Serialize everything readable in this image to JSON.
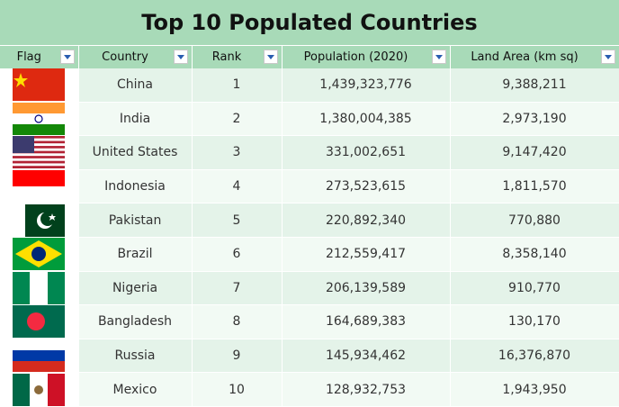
{
  "title": "Top 10 Populated Countries",
  "table": {
    "header": [
      "Flag",
      "Country",
      "Rank",
      "Population (2020)",
      "Land Area (km sq)"
    ],
    "rows": [
      [
        "China",
        "1",
        "1,439,323,776",
        "9,388,211"
      ],
      [
        "India",
        "2",
        "1,380,004,385",
        "2,973,190"
      ],
      [
        "United States",
        "3",
        "331,002,651",
        "9,147,420"
      ],
      [
        "Indonesia",
        "4",
        "273,523,615",
        "1,811,570"
      ],
      [
        "Pakistan",
        "5",
        "220,892,340",
        "770,880"
      ],
      [
        "Brazil",
        "6",
        "212,559,417",
        "8,358,140"
      ],
      [
        "Nigeria",
        "7",
        "206,139,589",
        "910,770"
      ],
      [
        "Bangladesh",
        "8",
        "164,689,383",
        "130,170"
      ],
      [
        "Russia",
        "9",
        "145,934,462",
        "16,376,870"
      ],
      [
        "Mexico",
        "10",
        "128,932,753",
        "1,943,950"
      ]
    ]
  }
}
